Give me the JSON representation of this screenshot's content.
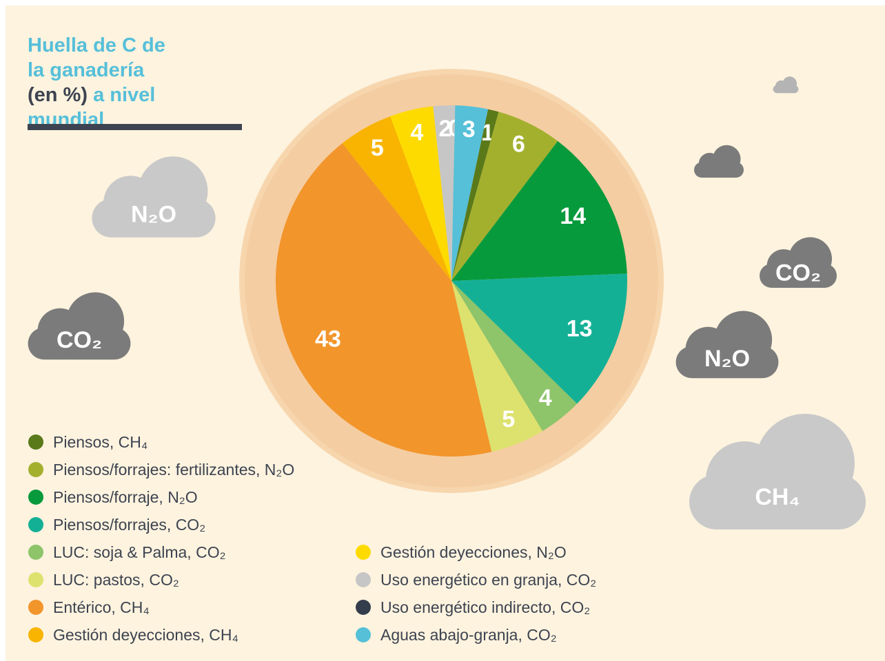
{
  "chart_data": {
    "type": "pie",
    "title": "Huella de C de la ganadería",
    "unit": "(en %)",
    "title_suffix": "a nivel mundial",
    "categories": [
      "Piensos, CH₄",
      "Piensos/forrajes: fertilizantes, N₂O",
      "Piensos/forraje, N₂O",
      "Piensos/forrajes, CO₂",
      "LUC: soja & Palma, CO₂",
      "LUC: pastos, CO₂",
      "Entérico, CH₄",
      "Gestión deyecciones, CH₄",
      "Gestión deyecciones, N₂O",
      "Uso energético en granja, CO₂",
      "Uso energético indirecto, CO₂",
      "Aguas abajo-granja, CO₂"
    ],
    "values": [
      1,
      6,
      14,
      13,
      4,
      5,
      43,
      5,
      4,
      2,
      0,
      3
    ],
    "colors": [
      "#5a7a1a",
      "#a3b02e",
      "#079a3c",
      "#14b096",
      "#8ec46a",
      "#dde26e",
      "#f2952b",
      "#f8b400",
      "#fddb00",
      "#c6c6c6",
      "#343d4b",
      "#55c0d8"
    ]
  },
  "clouds": [
    "N₂O",
    "CO₂",
    "CO₂",
    "N₂O",
    "CH₄"
  ]
}
